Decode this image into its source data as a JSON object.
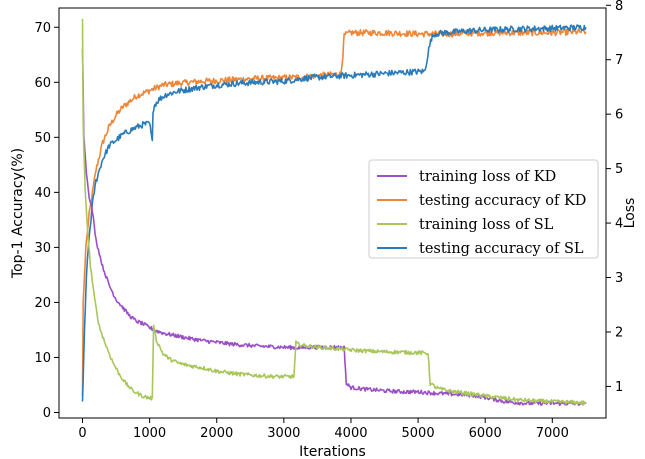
{
  "chart_data": {
    "type": "line",
    "title": "",
    "xlabel": "Iterations",
    "ylabel_left": "Top-1 Accuracy(%)",
    "ylabel_right": "Loss",
    "xlim": [
      -350,
      7800
    ],
    "ylim_left": [
      -1,
      73.5
    ],
    "ylim_right": [
      0.42,
      7.95
    ],
    "x_ticks": [
      "0",
      "1000",
      "2000",
      "3000",
      "4000",
      "5000",
      "6000",
      "7000"
    ],
    "x_tick_values": [
      0,
      1000,
      2000,
      3000,
      4000,
      5000,
      6000,
      7000
    ],
    "y_left_ticks": [
      "0",
      "10",
      "20",
      "30",
      "40",
      "50",
      "60",
      "70"
    ],
    "y_left_tick_values": [
      0,
      10,
      20,
      30,
      40,
      50,
      60,
      70
    ],
    "y_right_ticks": [
      "1",
      "2",
      "3",
      "4",
      "5",
      "6",
      "7",
      "8"
    ],
    "y_right_tick_values": [
      1,
      2,
      3,
      4,
      5,
      6,
      7,
      8
    ],
    "grid": false,
    "legend_position": "center-right",
    "series": [
      {
        "name": "training loss of KD",
        "axis": "right",
        "color": "#9b4fc7",
        "x": [
          0,
          20,
          60,
          100,
          150,
          200,
          300,
          400,
          500,
          600,
          700,
          800,
          900,
          1000,
          1100,
          1200,
          1400,
          1600,
          1800,
          2000,
          2200,
          2400,
          2600,
          2800,
          3000,
          3200,
          3400,
          3600,
          3800,
          3900,
          3930,
          4000,
          4200,
          4500,
          4800,
          5000,
          5200,
          5500,
          5800,
          6000,
          6300,
          6600,
          7000,
          7500
        ],
        "values": [
          7.2,
          5.6,
          4.9,
          4.5,
          4.2,
          3.7,
          3.2,
          2.85,
          2.6,
          2.45,
          2.3,
          2.2,
          2.15,
          2.08,
          2.02,
          1.98,
          1.93,
          1.88,
          1.84,
          1.81,
          1.78,
          1.76,
          1.74,
          1.73,
          1.72,
          1.71,
          1.72,
          1.72,
          1.72,
          1.71,
          1.05,
          0.98,
          0.95,
          0.92,
          0.9,
          0.9,
          0.88,
          0.86,
          0.84,
          0.8,
          0.72,
          0.69,
          0.69,
          0.68
        ]
      },
      {
        "name": "testing accuracy of KD",
        "axis": "left",
        "color": "#ef8637",
        "x": [
          0,
          10,
          50,
          100,
          200,
          300,
          400,
          500,
          600,
          700,
          800,
          900,
          1000,
          1100,
          1200,
          1400,
          1600,
          1800,
          2000,
          2300,
          2600,
          3000,
          3300,
          3600,
          3850,
          3880,
          3900,
          3950,
          4000,
          4200,
          4500,
          5000,
          5500,
          6000,
          6500,
          7000,
          7500
        ],
        "values": [
          3,
          20,
          30,
          36,
          44,
          49,
          52,
          54,
          55.5,
          56.5,
          57.5,
          58,
          58.5,
          59,
          59.5,
          59.8,
          60,
          60.2,
          60.3,
          60.5,
          60.7,
          60.8,
          61,
          61.3,
          61.5,
          65,
          68.5,
          68.8,
          69,
          69,
          69,
          68.8,
          68.8,
          69,
          69,
          69,
          69.2
        ]
      },
      {
        "name": "training loss of SL",
        "axis": "right",
        "color": "#a8c65a",
        "x": [
          0,
          10,
          40,
          80,
          120,
          180,
          250,
          350,
          450,
          550,
          650,
          750,
          850,
          950,
          1040,
          1060,
          1100,
          1200,
          1300,
          1450,
          1600,
          1800,
          2000,
          2300,
          2600,
          2900,
          3150,
          3180,
          3200,
          3300,
          3500,
          3800,
          4100,
          4400,
          4700,
          5000,
          5150,
          5180,
          5300,
          5500,
          5800,
          6100,
          6500,
          7000,
          7500
        ],
        "values": [
          7.75,
          5.8,
          4.6,
          3.8,
          3.2,
          2.6,
          2.1,
          1.75,
          1.45,
          1.22,
          1.05,
          0.92,
          0.85,
          0.8,
          0.78,
          2.15,
          1.85,
          1.6,
          1.5,
          1.42,
          1.38,
          1.34,
          1.28,
          1.23,
          1.2,
          1.18,
          1.18,
          1.8,
          1.78,
          1.75,
          1.72,
          1.69,
          1.66,
          1.64,
          1.63,
          1.62,
          1.61,
          1.05,
          0.96,
          0.91,
          0.86,
          0.81,
          0.75,
          0.72,
          0.7
        ]
      },
      {
        "name": "testing accuracy of SL",
        "axis": "left",
        "color": "#2b7bb9",
        "x": [
          0,
          30,
          60,
          100,
          150,
          200,
          300,
          400,
          500,
          600,
          700,
          800,
          900,
          1000,
          1030,
          1040,
          1050,
          1080,
          1150,
          1250,
          1400,
          1600,
          1800,
          2000,
          2300,
          2600,
          3000,
          3300,
          3600,
          3900,
          4200,
          4500,
          4800,
          5100,
          5160,
          5200,
          5250,
          5400,
          5700,
          6000,
          6500,
          7000,
          7500
        ],
        "values": [
          2,
          15,
          25,
          32,
          38,
          42,
          46,
          48.5,
          49.5,
          50.5,
          51.2,
          51.8,
          52.3,
          52.5,
          50,
          49,
          55,
          56,
          57,
          57.8,
          58.3,
          58.8,
          59.2,
          59.5,
          59.8,
          60,
          60.2,
          60.7,
          61,
          61.2,
          61.4,
          61.6,
          61.8,
          62,
          66,
          68,
          68.8,
          69,
          69.3,
          69.5,
          69.7,
          69.8,
          70
        ]
      }
    ]
  }
}
